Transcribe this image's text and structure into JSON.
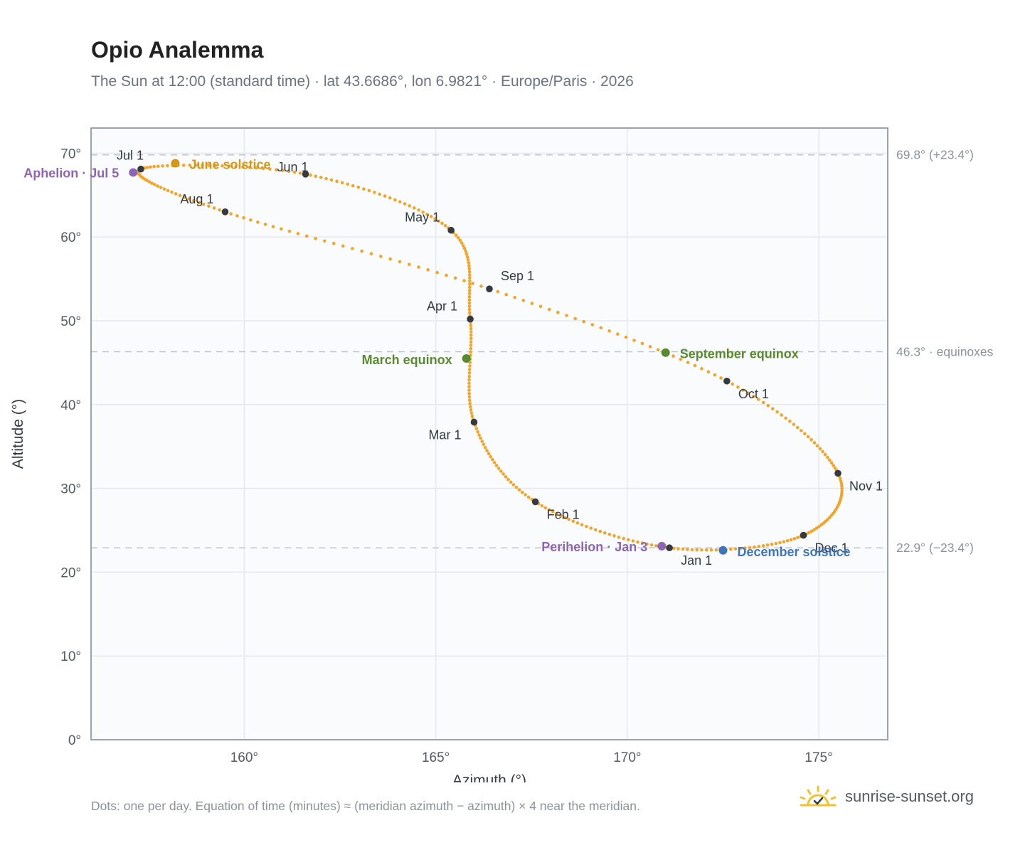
{
  "header": {
    "title": "Opio Analemma",
    "subtitle": "The Sun at 12:00 (standard time) · lat 43.6686°, lon 6.9821° · Europe/Paris · 2026"
  },
  "footer": {
    "note": "Dots: one per day. Equation of time (minutes) ≈ (meridian azimuth − azimuth) × 4 near the meridian.",
    "brand": "sunrise-sunset.org",
    "brand_icon": "sun-icon"
  },
  "colors": {
    "curve": "#f2a529",
    "month_marker": "#343a40",
    "apsis": "#8e65b4",
    "june_solstice": "#d39818",
    "equinox": "#5a8a2f",
    "december_solstice": "#3f74bb",
    "plot_bg": "#f9fbfd",
    "grid": "#e5e9ef",
    "axis": "#9aa3ae",
    "ref_line": "#bcc6d0"
  },
  "chart_data": {
    "type": "scatter",
    "xlabel": "Azimuth (°)",
    "ylabel": "Altitude (°)",
    "xlim": [
      156,
      176.8
    ],
    "ylim": [
      0,
      73
    ],
    "xticks": [
      160,
      165,
      170,
      175
    ],
    "xtick_labels": [
      "160°",
      "165°",
      "170°",
      "175°"
    ],
    "yticks": [
      0,
      10,
      20,
      30,
      40,
      50,
      60,
      70
    ],
    "ytick_labels": [
      "0°",
      "10°",
      "20°",
      "30°",
      "40°",
      "50°",
      "60°",
      "70°"
    ],
    "grid": true,
    "reference_lines": [
      {
        "y": 69.8,
        "label": "69.8° (+23.4°)"
      },
      {
        "y": 46.3,
        "label": "46.3° · equinoxes"
      },
      {
        "y": 22.9,
        "label": "22.9° (−23.4°)"
      }
    ],
    "month_markers": [
      {
        "label": "Jan 1",
        "az": 171.1,
        "alt": 22.9
      },
      {
        "label": "Feb 1",
        "az": 167.6,
        "alt": 28.4
      },
      {
        "label": "Mar 1",
        "az": 166.0,
        "alt": 37.9
      },
      {
        "label": "Apr 1",
        "az": 165.9,
        "alt": 50.2
      },
      {
        "label": "May 1",
        "az": 165.4,
        "alt": 60.8
      },
      {
        "label": "Jun 1",
        "az": 161.6,
        "alt": 67.5
      },
      {
        "label": "Jul 1",
        "az": 157.3,
        "alt": 68.1
      },
      {
        "label": "Aug 1",
        "az": 159.5,
        "alt": 63.0
      },
      {
        "label": "Sep 1",
        "az": 166.4,
        "alt": 53.8
      },
      {
        "label": "Oct 1",
        "az": 172.6,
        "alt": 42.8
      },
      {
        "label": "Nov 1",
        "az": 175.5,
        "alt": 31.8
      },
      {
        "label": "Dec 1",
        "az": 174.6,
        "alt": 24.4
      }
    ],
    "events": [
      {
        "label": "Aphelion · Jul 5",
        "az": 157.1,
        "alt": 67.7,
        "color_key": "apsis"
      },
      {
        "label": "June solstice",
        "az": 158.2,
        "alt": 68.8,
        "color_key": "june_solstice"
      },
      {
        "label": "March equinox",
        "az": 165.8,
        "alt": 45.5,
        "color_key": "equinox"
      },
      {
        "label": "September equinox",
        "az": 171.0,
        "alt": 46.2,
        "color_key": "equinox"
      },
      {
        "label": "Perihelion · Jan 3",
        "az": 170.9,
        "alt": 23.1,
        "color_key": "apsis"
      },
      {
        "label": "December solstice",
        "az": 172.5,
        "alt": 22.6,
        "color_key": "december_solstice"
      }
    ],
    "daily_points": {
      "count": 365,
      "description_source": "footer.note"
    }
  }
}
